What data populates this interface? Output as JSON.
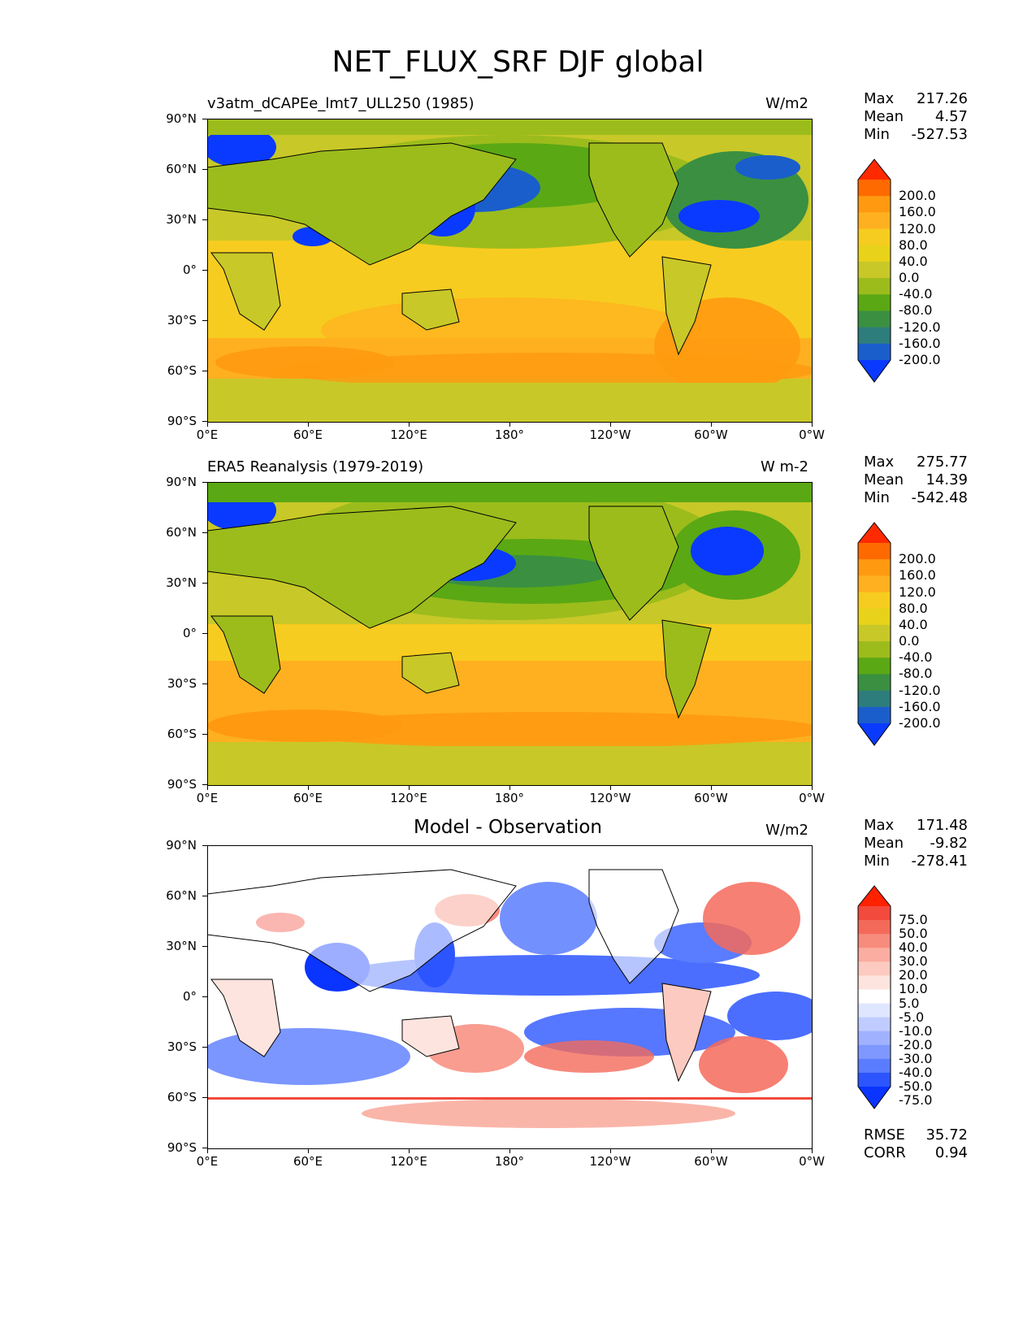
{
  "figure": {
    "title": "NET_FLUX_SRF DJF global"
  },
  "lat_labels": [
    "90°N",
    "60°N",
    "30°N",
    "0°",
    "30°S",
    "60°S",
    "90°S"
  ],
  "lon_labels": [
    "0°E",
    "60°E",
    "120°E",
    "180°",
    "120°W",
    "60°W",
    "0°W"
  ],
  "panels": [
    {
      "title": "v3atm_dCAPEe_lmt7_ULL250 (1985)",
      "units": "W/m2",
      "stats": {
        "max_label": "Max",
        "max": "217.26",
        "mean_label": "Mean",
        "mean": "4.57",
        "min_label": "Min",
        "min": "-527.53"
      },
      "colorbar": {
        "labels": [
          "200.0",
          "160.0",
          "120.0",
          "80.0",
          "40.0",
          "0.0",
          "-40.0",
          "-80.0",
          "-120.0",
          "-160.0",
          "-200.0"
        ],
        "colors": [
          "#ff2a00",
          "#ff6a00",
          "#ff9a10",
          "#ffb020",
          "#f7cc20",
          "#e8d21a",
          "#c8c828",
          "#9cbc1c",
          "#5aa814",
          "#3a9040",
          "#2e7d7d",
          "#1a5ecc",
          "#0a3aff"
        ]
      }
    },
    {
      "title": "ERA5 Reanalysis (1979-2019)",
      "units": "W m-2",
      "stats": {
        "max_label": "Max",
        "max": "275.77",
        "mean_label": "Mean",
        "mean": "14.39",
        "min_label": "Min",
        "min": "-542.48"
      },
      "colorbar": {
        "labels": [
          "200.0",
          "160.0",
          "120.0",
          "80.0",
          "40.0",
          "0.0",
          "-40.0",
          "-80.0",
          "-120.0",
          "-160.0",
          "-200.0"
        ],
        "colors": [
          "#ff2a00",
          "#ff6a00",
          "#ff9a10",
          "#ffb020",
          "#f7cc20",
          "#e8d21a",
          "#c8c828",
          "#9cbc1c",
          "#5aa814",
          "#3a9040",
          "#2e7d7d",
          "#1a5ecc",
          "#0a3aff"
        ]
      }
    },
    {
      "title": "Model - Observation",
      "units": "W/m2",
      "stats": {
        "max_label": "Max",
        "max": "171.48",
        "mean_label": "Mean",
        "mean": "-9.82",
        "min_label": "Min",
        "min": "-278.41"
      },
      "colorbar": {
        "labels": [
          "75.0",
          "50.0",
          "40.0",
          "30.0",
          "20.0",
          "10.0",
          "5.0",
          "-5.0",
          "-10.0",
          "-20.0",
          "-30.0",
          "-40.0",
          "-50.0",
          "-75.0"
        ],
        "colors": [
          "#ff2200",
          "#f24a3c",
          "#f46a5a",
          "#f78c7c",
          "#faada0",
          "#fccac0",
          "#fde4de",
          "#ffffff",
          "#dfe6ff",
          "#c0ccff",
          "#a0b2ff",
          "#7f98ff",
          "#5a7cff",
          "#2c55ff",
          "#0a34ff"
        ]
      },
      "metrics": {
        "rmse_label": "RMSE",
        "rmse": "35.72",
        "corr_label": "CORR",
        "corr": "0.94"
      }
    }
  ]
}
